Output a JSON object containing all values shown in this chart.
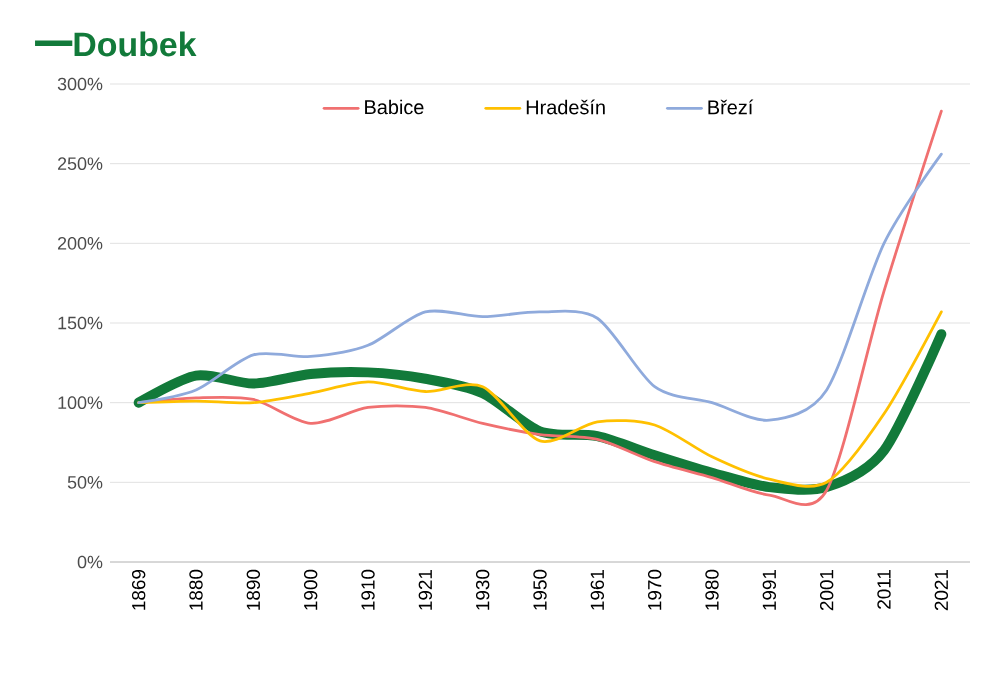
{
  "chart_data": {
    "type": "line",
    "title": "Doubek",
    "categories": [
      "1869",
      "1880",
      "1890",
      "1900",
      "1910",
      "1921",
      "1930",
      "1950",
      "1961",
      "1970",
      "1980",
      "1991",
      "2001",
      "2011",
      "2021"
    ],
    "series": [
      {
        "color": "#127a3a",
        "values": [
          100,
          117,
          112,
          118,
          119,
          115,
          106,
          82,
          79,
          67,
          56,
          47,
          47,
          70,
          143
        ]
      },
      {
        "name": "Babice",
        "color": "#f07070",
        "values": [
          100,
          103,
          102,
          87,
          97,
          97,
          87,
          80,
          77,
          63,
          53,
          42,
          45,
          170,
          283
        ]
      },
      {
        "name": "Hradešín",
        "color": "#ffc000",
        "values": [
          100,
          101,
          100,
          106,
          113,
          107,
          110,
          76,
          88,
          86,
          66,
          52,
          50,
          93,
          157
        ]
      },
      {
        "name": "Březí",
        "color": "#8faadc",
        "values": [
          100,
          108,
          130,
          129,
          136,
          157,
          154,
          157,
          153,
          110,
          100,
          89,
          108,
          200,
          256
        ]
      }
    ],
    "ylim": [
      0,
      300
    ],
    "yticks": [
      {
        "value": 0,
        "label": "0%"
      },
      {
        "value": 50,
        "label": "50%"
      },
      {
        "value": 100,
        "label": "100%"
      },
      {
        "value": 150,
        "label": "150%"
      },
      {
        "value": 200,
        "label": "200%"
      },
      {
        "value": 250,
        "label": "250%"
      },
      {
        "value": 300,
        "label": "300%"
      }
    ],
    "grid": "y",
    "legend": "top",
    "line_style": "solid",
    "marker": "none"
  }
}
